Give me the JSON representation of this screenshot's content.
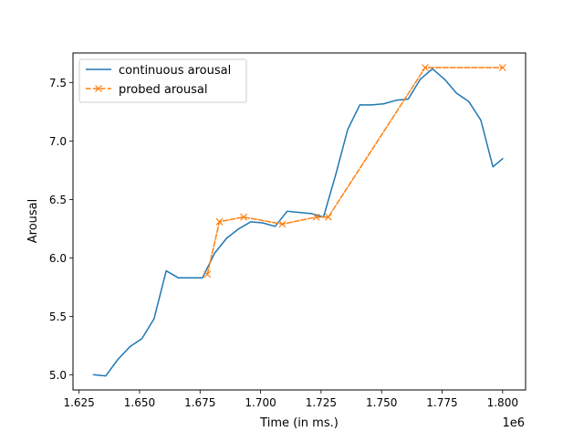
{
  "chart_data": {
    "type": "line",
    "xlabel": "Time (in ms.)",
    "ylabel": "Arousal",
    "x_offset_label": "1e6",
    "xlim": [
      1.6225,
      1.8095
    ],
    "ylim": [
      4.87,
      7.755
    ],
    "x_ticks": [
      1.625,
      1.65,
      1.675,
      1.7,
      1.725,
      1.75,
      1.775,
      1.8
    ],
    "x_tick_labels": [
      "1.625",
      "1.650",
      "1.675",
      "1.700",
      "1.725",
      "1.750",
      "1.775",
      "1.800"
    ],
    "y_ticks": [
      5.0,
      5.5,
      6.0,
      6.5,
      7.0,
      7.5
    ],
    "y_tick_labels": [
      "5.0",
      "5.5",
      "6.0",
      "6.5",
      "7.0",
      "7.5"
    ],
    "grid": false,
    "legend_position": "upper-left",
    "series": [
      {
        "name": "continuous arousal",
        "color": "#1f77b4",
        "style": "solid",
        "marker": "none",
        "x": [
          1.631,
          1.636,
          1.641,
          1.646,
          1.651,
          1.656,
          1.661,
          1.666,
          1.671,
          1.676,
          1.681,
          1.686,
          1.691,
          1.696,
          1.701,
          1.706,
          1.711,
          1.716,
          1.721,
          1.726,
          1.731,
          1.736,
          1.741,
          1.746,
          1.751,
          1.756,
          1.761,
          1.766,
          1.771,
          1.776,
          1.781,
          1.786,
          1.791,
          1.796,
          1.8
        ],
        "y": [
          5.0,
          4.99,
          5.13,
          5.24,
          5.31,
          5.48,
          5.89,
          5.83,
          5.83,
          5.83,
          6.04,
          6.17,
          6.25,
          6.31,
          6.3,
          6.27,
          6.4,
          6.39,
          6.38,
          6.35,
          6.71,
          7.1,
          7.31,
          7.31,
          7.32,
          7.35,
          7.36,
          7.53,
          7.62,
          7.53,
          7.41,
          7.34,
          7.18,
          6.78,
          6.85
        ]
      },
      {
        "name": "probed arousal",
        "color": "#ff7f0e",
        "style": "dashed",
        "marker": "x",
        "x": [
          1.678,
          1.683,
          1.693,
          1.709,
          1.723,
          1.728,
          1.768,
          1.8
        ],
        "y": [
          5.86,
          6.31,
          6.35,
          6.29,
          6.35,
          6.35,
          7.63,
          7.63
        ]
      }
    ]
  }
}
